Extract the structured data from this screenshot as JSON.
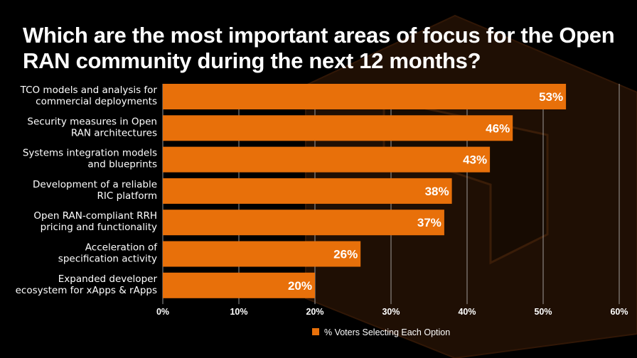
{
  "chart_data": {
    "type": "bar",
    "orientation": "horizontal",
    "title": "Which are the most important areas of focus for the Open RAN community during the next 12 months?",
    "categories": [
      [
        "TCO models and analysis for",
        "commercial deployments"
      ],
      [
        "Security measures in Open",
        "RAN architectures"
      ],
      [
        "Systems integration models",
        "and blueprints"
      ],
      [
        "Development of a reliable",
        "RIC platform"
      ],
      [
        "Open RAN-compliant RRH",
        "pricing and functionality"
      ],
      [
        "Acceleration of",
        "specification activity"
      ],
      [
        "Expanded developer",
        "ecosystem for xApps & rApps"
      ]
    ],
    "series": [
      {
        "name": "% Voters Selecting Each Option",
        "values": [
          53,
          46,
          43,
          38,
          37,
          26,
          20
        ],
        "color": "#E8700A"
      }
    ],
    "value_labels": [
      "53%",
      "46%",
      "43%",
      "38%",
      "37%",
      "26%",
      "20%"
    ],
    "xlim": [
      0,
      60
    ],
    "x_ticks": [
      "0%",
      "10%",
      "20%",
      "30%",
      "40%",
      "50%",
      "60%"
    ],
    "grid": "vertical",
    "legend_position": "bottom"
  },
  "colors": {
    "background": "#000000",
    "bar": "#E8700A",
    "text": "#FFFFFF",
    "grid": "#BFBFBF",
    "decor_hexagon": "#3A1A06"
  },
  "decoration": "orange-hexagon-logo-watermark"
}
